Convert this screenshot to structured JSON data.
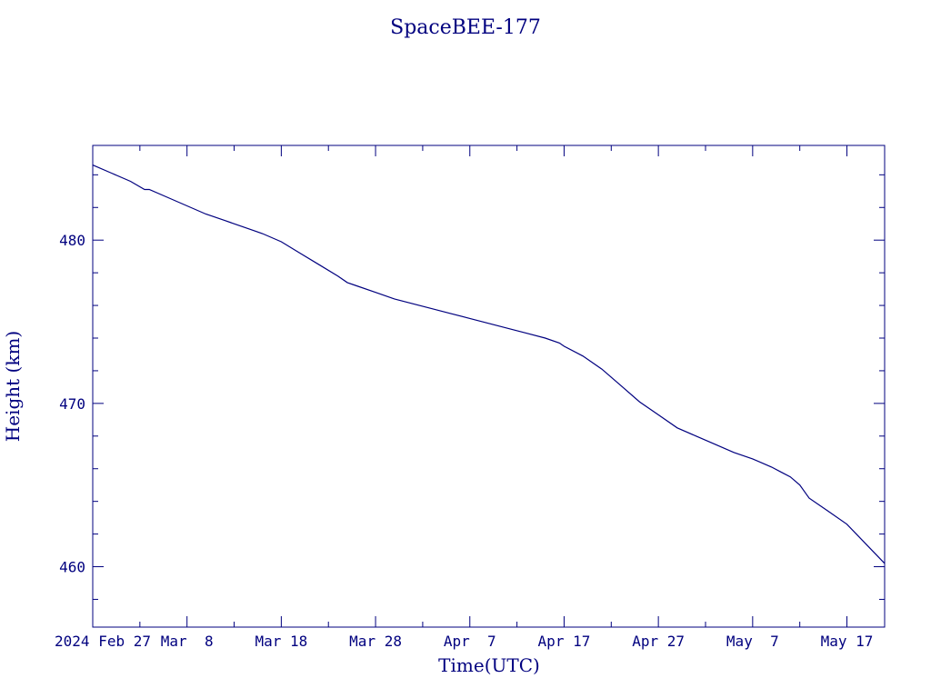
{
  "chart_data": {
    "type": "line",
    "title": "SpaceBEE-177",
    "xlabel": "Time(UTC)",
    "ylabel": "Height (km)",
    "x_tick_labels": [
      "2024 Feb 27",
      "Mar  8",
      "Mar 18",
      "Mar 28",
      "Apr  7",
      "Apr 17",
      "Apr 27",
      "May  7",
      "May 17"
    ],
    "x_ticks_days": [
      0,
      10,
      20,
      30,
      40,
      50,
      60,
      70,
      80
    ],
    "y_ticks": [
      460,
      470,
      480
    ],
    "y_tick_labels": [
      "460",
      "470",
      "480"
    ],
    "xlim_days": [
      0,
      84
    ],
    "ylim": [
      456.3,
      485.8
    ],
    "grid": false,
    "color": "#00007f",
    "series": [
      {
        "name": "",
        "x": [
          0,
          2,
          4,
          5.5,
          6,
          8,
          10,
          12,
          14,
          16,
          18,
          20,
          22,
          24,
          26,
          27,
          28,
          30,
          32,
          34,
          36,
          38,
          40,
          42,
          44,
          46,
          48,
          49.5,
          50,
          52,
          54,
          56,
          58,
          60,
          62,
          64,
          66,
          68,
          70,
          72,
          73,
          74,
          75,
          76,
          78,
          80,
          82,
          84
        ],
        "y": [
          484.6,
          484.1,
          483.6,
          483.1,
          483.1,
          482.6,
          482.1,
          481.6,
          481.2,
          480.8,
          480.4,
          479.9,
          479.2,
          478.5,
          477.8,
          477.4,
          477.2,
          476.8,
          476.4,
          476.1,
          475.8,
          475.5,
          475.2,
          474.9,
          474.6,
          474.3,
          474.0,
          473.7,
          473.5,
          472.9,
          472.1,
          471.1,
          470.1,
          469.3,
          468.5,
          468.0,
          467.5,
          467.0,
          466.6,
          466.1,
          465.8,
          465.5,
          465.0,
          464.2,
          463.4,
          462.6,
          461.4,
          460.2
        ]
      }
    ]
  }
}
